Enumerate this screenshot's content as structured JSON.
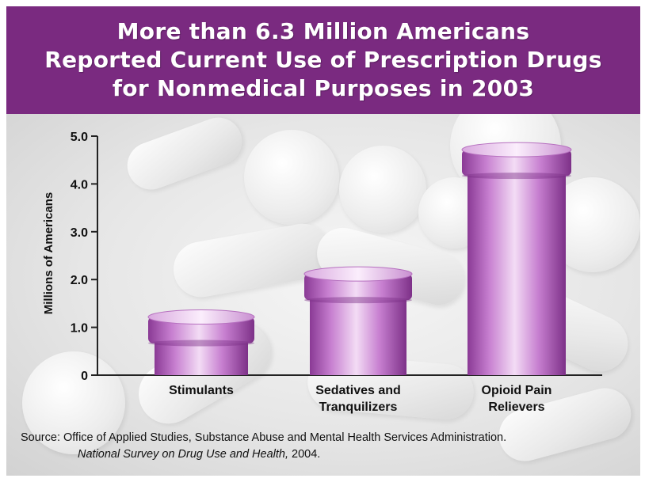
{
  "title": {
    "lines": [
      "More than 6.3 Million Americans",
      "Reported Current Use of Prescription Drugs",
      "for Nonmedical Purposes in 2003"
    ]
  },
  "colors": {
    "title_band": "#7a2a80",
    "bar_light": "#f3dcf5",
    "bar_mid": "#c77fd0",
    "bar_dark": "#8a3a95"
  },
  "chart_data": {
    "type": "bar",
    "title": "More than 6.3 Million Americans Reported Current Use of Prescription Drugs for Nonmedical Purposes in 2003",
    "categories": [
      [
        "Stimulants"
      ],
      [
        "Sedatives and",
        "Tranquilizers"
      ],
      [
        "Opioid Pain",
        "Relievers"
      ]
    ],
    "values": [
      1.2,
      2.1,
      4.7
    ],
    "ylabel": "Millions of Americans",
    "xlabel": "",
    "ylim": [
      0,
      5.0
    ],
    "yticks": [
      "0",
      "1.0",
      "2.0",
      "3.0",
      "4.0",
      "5.0"
    ],
    "grid": false,
    "legend": "none"
  },
  "source": {
    "line1": "Source: Office of Applied Studies, Substance Abuse and Mental Health Services Administration.",
    "line2_italic": "National Survey on Drug Use and Health,",
    "line2_rest": " 2004."
  }
}
